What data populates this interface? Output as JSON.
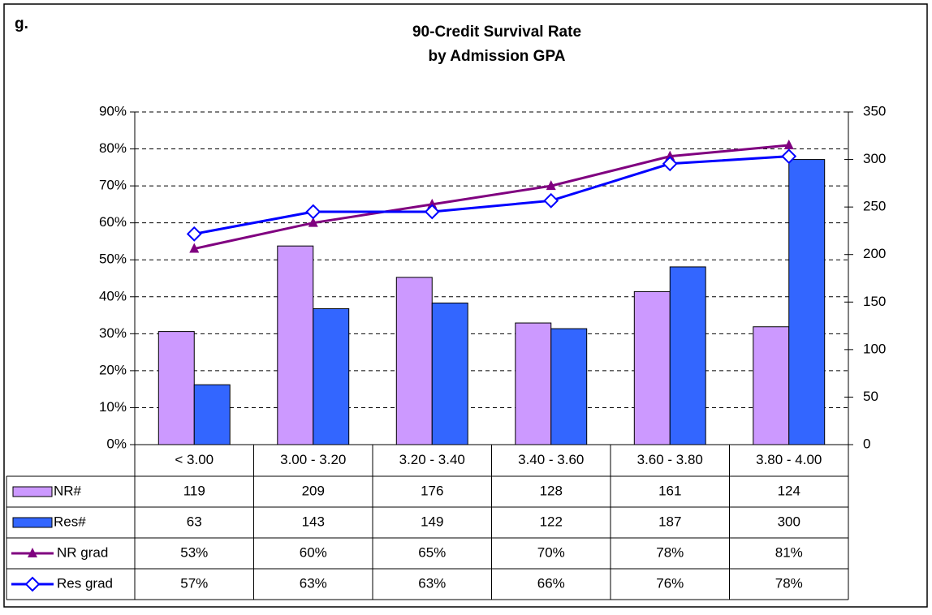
{
  "chart_data": {
    "type": "bar",
    "panel_label": "g.",
    "title": "90-Credit Survival Rate",
    "subtitle": "by Admission GPA",
    "categories": [
      "< 3.00",
      "3.00 - 3.20",
      "3.20 - 3.40",
      "3.40 - 3.60",
      "3.60 - 3.80",
      "3.80 - 4.00"
    ],
    "series": [
      {
        "name": "NR#",
        "type": "bar",
        "axis": "y2",
        "color": "#cc99ff",
        "values": [
          119,
          209,
          176,
          128,
          161,
          124
        ]
      },
      {
        "name": "Res#",
        "type": "bar",
        "axis": "y2",
        "color": "#3366ff",
        "values": [
          63,
          143,
          149,
          122,
          187,
          300
        ]
      },
      {
        "name": "NR grad",
        "type": "line",
        "marker": "triangle",
        "color": "#800080",
        "values": [
          53,
          60,
          65,
          70,
          78,
          81
        ],
        "value_labels": [
          "53%",
          "60%",
          "65%",
          "70%",
          "78%",
          "81%"
        ]
      },
      {
        "name": "Res grad",
        "type": "line",
        "marker": "diamond",
        "color": "#0000ff",
        "values": [
          57,
          63,
          63,
          66,
          76,
          78
        ],
        "value_labels": [
          "57%",
          "63%",
          "63%",
          "66%",
          "76%",
          "78%"
        ]
      }
    ],
    "ylim": [
      0,
      90
    ],
    "yticks": [
      {
        "value": 0,
        "label": "0%"
      },
      {
        "value": 10,
        "label": "10%"
      },
      {
        "value": 20,
        "label": "20%"
      },
      {
        "value": 30,
        "label": "30%"
      },
      {
        "value": 40,
        "label": "40%"
      },
      {
        "value": 50,
        "label": "50%"
      },
      {
        "value": 60,
        "label": "60%"
      },
      {
        "value": 70,
        "label": "70%"
      },
      {
        "value": 80,
        "label": "80%"
      },
      {
        "value": 90,
        "label": "90%"
      }
    ],
    "y2lim": [
      0,
      350
    ],
    "y2ticks": [
      0,
      50,
      100,
      150,
      200,
      250,
      300,
      350
    ],
    "grid": true,
    "legend": "table"
  }
}
